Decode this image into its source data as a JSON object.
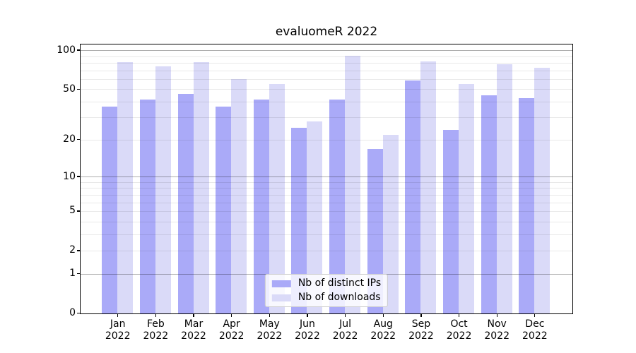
{
  "figure_title": "evaluomeR 2022",
  "colors": {
    "distinct_ips_bar": "#aaaaf8",
    "downloads_bar": "#dadaf8",
    "axis": "#000000",
    "grid_major": "rgba(0,0,0,0.32)",
    "grid_minor": "rgba(0,0,0,0.085)",
    "legend_border": "#cccccc",
    "legend_background": "rgba(255,255,255,0.8)"
  },
  "chart_data": {
    "type": "bar",
    "title": "evaluomeR 2022",
    "categories": [
      "Jan 2022",
      "Feb 2022",
      "Mar 2022",
      "Apr 2022",
      "May 2022",
      "Jun 2022",
      "Jul 2022",
      "Aug 2022",
      "Sep 2022",
      "Oct 2022",
      "Nov 2022",
      "Dec 2022"
    ],
    "month_labels": [
      "Jan",
      "Feb",
      "Mar",
      "Apr",
      "May",
      "Jun",
      "Jul",
      "Aug",
      "Sep",
      "Oct",
      "Nov",
      "Dec"
    ],
    "year_label": "2022",
    "series": [
      {
        "name": "Nb of distinct IPs",
        "color": "#aaaaf8",
        "values": [
          37,
          42,
          46,
          37,
          42,
          25,
          42,
          17,
          59,
          24,
          45,
          43
        ]
      },
      {
        "name": "Nb of downloads",
        "color": "#dadaf8",
        "values": [
          82,
          76,
          82,
          60,
          55,
          28,
          91,
          22,
          83,
          55,
          78,
          74
        ]
      }
    ],
    "xlabel": "",
    "ylabel": "",
    "yscale": "log1p",
    "ylim": [
      0,
      110
    ],
    "y_tick_labels": [
      "0",
      "1",
      "2",
      "5",
      "10",
      "20",
      "50",
      "100"
    ],
    "y_tick_values": [
      0,
      1,
      2,
      5,
      10,
      20,
      50,
      100
    ],
    "y_major_gridlines": [
      1,
      10,
      100
    ],
    "y_minor_gridlines": [
      2,
      3,
      4,
      5,
      6,
      7,
      8,
      9,
      20,
      30,
      40,
      50,
      60,
      70,
      80,
      90
    ],
    "grid": true,
    "legend_position": "lower center"
  }
}
